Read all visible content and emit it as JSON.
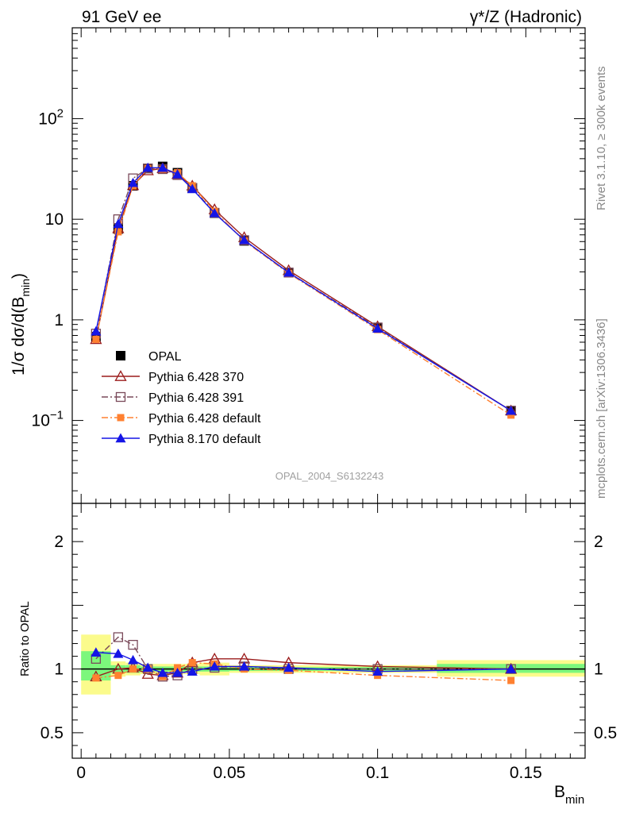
{
  "header": {
    "left": "91 GeV ee",
    "right": "γ*/Z (Hadronic)"
  },
  "side_labels": {
    "top": "Rivet 3.1.10, ≥ 300k events",
    "bottom": "mcplots.cern.ch [arXiv:1306.3436]"
  },
  "watermark": "OPAL_2004_S6132243",
  "colors": {
    "opal": "#000000",
    "py370": "#9b1c1c",
    "py391": "#7a4a5a",
    "pydefault": "#ff8030",
    "py8": "#1515e6",
    "band_green": "#7cf77c",
    "band_yellow": "#fbfb8c"
  },
  "chart_data": [
    {
      "type": "line",
      "panel": "main",
      "ylabel": "1/σ dσ/d(B_min)",
      "xlim": [
        -0.003,
        0.17
      ],
      "ylim": [
        0.015,
        800
      ],
      "yscale": "log",
      "ytick_labels": [
        "10^-1",
        "1",
        "10",
        "10^2"
      ],
      "x": [
        0.005,
        0.0125,
        0.0175,
        0.0225,
        0.0275,
        0.0325,
        0.0375,
        0.045,
        0.055,
        0.07,
        0.1,
        0.145
      ],
      "series": [
        {
          "name": "OPAL",
          "key": "opal",
          "marker": "square-filled",
          "values": [
            0.68,
            8.0,
            21.5,
            32.0,
            33.5,
            29.0,
            20.5,
            11.5,
            6.1,
            2.95,
            0.84,
            0.125
          ]
        },
        {
          "name": "Pythia 6.428 370",
          "key": "py370",
          "marker": "triangle-open",
          "line": "solid",
          "values": [
            0.64,
            8.1,
            21.7,
            30.5,
            32.0,
            28.0,
            21.5,
            12.5,
            6.6,
            3.1,
            0.86,
            0.125
          ]
        },
        {
          "name": "Pythia 6.428 391",
          "key": "py391",
          "marker": "square-open",
          "line": "dashdot",
          "values": [
            0.73,
            10.0,
            25.5,
            32.0,
            31.5,
            27.5,
            20.5,
            11.6,
            6.2,
            2.95,
            0.84,
            0.125
          ]
        },
        {
          "name": "Pythia 6.428 default",
          "key": "pydefault",
          "marker": "square-filled-small",
          "line": "dashdot",
          "values": [
            0.64,
            7.5,
            21.5,
            32.0,
            31.5,
            29.0,
            21.5,
            12.0,
            6.1,
            2.9,
            0.8,
            0.113
          ]
        },
        {
          "name": "Pythia 8.170 default",
          "key": "py8",
          "marker": "triangle-filled",
          "line": "solid",
          "values": [
            0.77,
            9.0,
            23.0,
            32.5,
            32.5,
            28.0,
            20.0,
            11.5,
            6.2,
            2.95,
            0.82,
            0.125
          ]
        }
      ],
      "legend_position": "lower-left"
    },
    {
      "type": "line",
      "panel": "ratio",
      "ylabel": "Ratio to OPAL",
      "xlabel": "B_min",
      "xlim": [
        -0.003,
        0.17
      ],
      "ylim": [
        0.3,
        2.3
      ],
      "xtick_labels": [
        "0",
        "0.05",
        "0.1",
        "0.15"
      ],
      "ytick_labels": [
        "0.5",
        "1",
        "2"
      ],
      "reference": 1.0,
      "bands": [
        {
          "x0": 0.0,
          "x1": 0.01,
          "green": [
            0.91,
            1.14
          ],
          "yellow": [
            0.8,
            1.27
          ]
        },
        {
          "x0": 0.01,
          "x1": 0.015,
          "green": [
            0.97,
            1.03
          ],
          "yellow": [
            0.94,
            1.06
          ]
        },
        {
          "x0": 0.015,
          "x1": 0.02,
          "green": [
            0.97,
            1.03
          ],
          "yellow": [
            0.95,
            1.05
          ]
        },
        {
          "x0": 0.02,
          "x1": 0.04,
          "green": [
            0.98,
            1.02
          ],
          "yellow": [
            0.96,
            1.04
          ]
        },
        {
          "x0": 0.04,
          "x1": 0.05,
          "green": [
            0.98,
            1.02
          ],
          "yellow": [
            0.95,
            1.05
          ]
        },
        {
          "x0": 0.05,
          "x1": 0.12,
          "green": [
            0.985,
            1.015
          ],
          "yellow": [
            0.97,
            1.03
          ]
        },
        {
          "x0": 0.12,
          "x1": 0.17,
          "green": [
            0.97,
            1.04
          ],
          "yellow": [
            0.94,
            1.07
          ]
        }
      ],
      "x": [
        0.005,
        0.0125,
        0.0175,
        0.0225,
        0.0275,
        0.0325,
        0.0375,
        0.045,
        0.055,
        0.07,
        0.1,
        0.145
      ],
      "series": [
        {
          "name": "Pythia 6.428 370",
          "key": "py370",
          "marker": "triangle-open",
          "line": "solid",
          "values": [
            0.94,
            1.0,
            1.01,
            0.96,
            0.95,
            0.97,
            1.05,
            1.08,
            1.08,
            1.05,
            1.02,
            1.0
          ]
        },
        {
          "name": "Pythia 6.428 391",
          "key": "py391",
          "marker": "square-open",
          "line": "dashdot",
          "values": [
            1.08,
            1.25,
            1.19,
            1.0,
            0.94,
            0.95,
            1.0,
            1.01,
            1.02,
            1.0,
            1.0,
            1.0
          ]
        },
        {
          "name": "Pythia 6.428 default",
          "key": "pydefault",
          "marker": "square-filled-small",
          "line": "dashdot",
          "values": [
            0.93,
            0.95,
            1.0,
            1.0,
            0.94,
            1.01,
            1.05,
            1.04,
            1.0,
            0.99,
            0.95,
            0.91
          ]
        },
        {
          "name": "Pythia 8.170 default",
          "key": "py8",
          "marker": "triangle-filled",
          "line": "solid",
          "values": [
            1.13,
            1.12,
            1.07,
            1.01,
            0.97,
            0.97,
            0.98,
            1.02,
            1.02,
            1.01,
            0.98,
            1.0
          ]
        }
      ]
    }
  ]
}
